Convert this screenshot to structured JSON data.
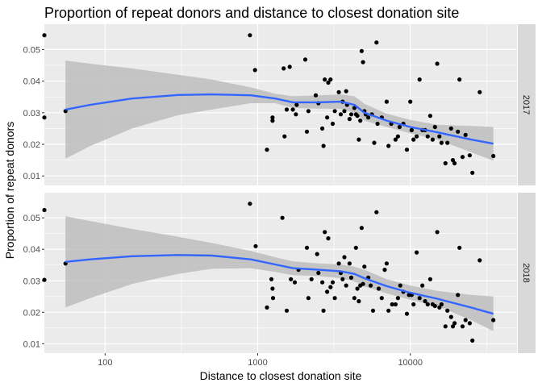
{
  "chart_data": {
    "type": "scatter",
    "title": "Proportion of  repeat donors and distance to closest donation site",
    "xlabel": "Distance to closest donation site",
    "ylabel": "Proportion of repeat donors",
    "x_scale": "log10",
    "xlim": [
      40,
      50000
    ],
    "x_ticks": [
      100,
      1000,
      10000
    ],
    "x_tick_labels": [
      "100",
      "1000",
      "10000"
    ],
    "ylim": [
      0.007,
      0.058
    ],
    "y_ticks": [
      0.01,
      0.02,
      0.03,
      0.04,
      0.05
    ],
    "y_tick_labels": [
      "0.01",
      "0.02",
      "0.03",
      "0.04",
      "0.05"
    ],
    "grid": true,
    "colors": {
      "panel_background": "#ebebeb",
      "grid": "#ffffff",
      "strip_background": "#d9d9d9",
      "points": "#000000",
      "smooth_line": "#3366ff",
      "confidence_band": "#bdbdbd"
    },
    "facets": [
      {
        "label": "2017",
        "points": [
          [
            40,
            0.0545
          ],
          [
            40,
            0.0285
          ],
          [
            55,
            0.0305
          ],
          [
            890,
            0.0545
          ],
          [
            960,
            0.0435
          ],
          [
            1150,
            0.0183
          ],
          [
            1250,
            0.0285
          ],
          [
            1250,
            0.0275
          ],
          [
            1480,
            0.044
          ],
          [
            1500,
            0.0225
          ],
          [
            1550,
            0.031
          ],
          [
            1620,
            0.0445
          ],
          [
            1700,
            0.031
          ],
          [
            1780,
            0.0295
          ],
          [
            1800,
            0.0325
          ],
          [
            2050,
            0.0468
          ],
          [
            2100,
            0.024
          ],
          [
            2150,
            0.0305
          ],
          [
            2400,
            0.0355
          ],
          [
            2500,
            0.033
          ],
          [
            2650,
            0.025
          ],
          [
            2700,
            0.0195
          ],
          [
            2750,
            0.0405
          ],
          [
            2850,
            0.0285
          ],
          [
            2900,
            0.0395
          ],
          [
            3000,
            0.0405
          ],
          [
            3100,
            0.0265
          ],
          [
            3200,
            0.0305
          ],
          [
            3400,
            0.0365
          ],
          [
            3500,
            0.0295
          ],
          [
            3600,
            0.0335
          ],
          [
            3700,
            0.0305
          ],
          [
            3800,
            0.0368
          ],
          [
            3850,
            0.0325
          ],
          [
            4000,
            0.028
          ],
          [
            4100,
            0.0295
          ],
          [
            4300,
            0.0315
          ],
          [
            4400,
            0.0295
          ],
          [
            4500,
            0.029
          ],
          [
            4600,
            0.0215
          ],
          [
            4700,
            0.0275
          ],
          [
            4800,
            0.0495
          ],
          [
            4900,
            0.046
          ],
          [
            5000,
            0.0305
          ],
          [
            5100,
            0.0295
          ],
          [
            5300,
            0.0285
          ],
          [
            5600,
            0.0295
          ],
          [
            5800,
            0.0205
          ],
          [
            6000,
            0.0522
          ],
          [
            6100,
            0.0265
          ],
          [
            6500,
            0.0285
          ],
          [
            7000,
            0.0335
          ],
          [
            7200,
            0.0195
          ],
          [
            7500,
            0.0265
          ],
          [
            8000,
            0.0215
          ],
          [
            8300,
            0.0225
          ],
          [
            8500,
            0.0255
          ],
          [
            9000,
            0.0265
          ],
          [
            9500,
            0.0183
          ],
          [
            10000,
            0.0335
          ],
          [
            10200,
            0.0245
          ],
          [
            10500,
            0.0215
          ],
          [
            11000,
            0.0225
          ],
          [
            11500,
            0.0405
          ],
          [
            12000,
            0.0245
          ],
          [
            12500,
            0.0245
          ],
          [
            13000,
            0.0225
          ],
          [
            13500,
            0.029
          ],
          [
            14000,
            0.0215
          ],
          [
            14500,
            0.0255
          ],
          [
            15000,
            0.0455
          ],
          [
            15500,
            0.0225
          ],
          [
            16000,
            0.0205
          ],
          [
            17000,
            0.014
          ],
          [
            17500,
            0.0205
          ],
          [
            18500,
            0.025
          ],
          [
            19000,
            0.015
          ],
          [
            19500,
            0.014
          ],
          [
            20500,
            0.024
          ],
          [
            21000,
            0.0405
          ],
          [
            22000,
            0.016
          ],
          [
            23000,
            0.023
          ],
          [
            24500,
            0.0165
          ],
          [
            25500,
            0.011
          ],
          [
            28500,
            0.0365
          ],
          [
            35000,
            0.0163
          ]
        ],
        "smooth": [
          [
            55,
            0.031
          ],
          [
            80,
            0.0325
          ],
          [
            150,
            0.0345
          ],
          [
            300,
            0.0356
          ],
          [
            500,
            0.0358
          ],
          [
            900,
            0.0355
          ],
          [
            1300,
            0.0345
          ],
          [
            1700,
            0.0333
          ],
          [
            2500,
            0.0333
          ],
          [
            3500,
            0.0335
          ],
          [
            4300,
            0.0325
          ],
          [
            5000,
            0.03
          ],
          [
            7000,
            0.0275
          ],
          [
            10000,
            0.0255
          ],
          [
            15000,
            0.0238
          ],
          [
            25000,
            0.0215
          ],
          [
            35000,
            0.0202
          ]
        ],
        "band_upper": [
          [
            55,
            0.0465
          ],
          [
            80,
            0.0455
          ],
          [
            150,
            0.044
          ],
          [
            300,
            0.042
          ],
          [
            500,
            0.0405
          ],
          [
            900,
            0.038
          ],
          [
            1300,
            0.036
          ],
          [
            1700,
            0.0352
          ],
          [
            2500,
            0.0355
          ],
          [
            3500,
            0.0358
          ],
          [
            4300,
            0.0352
          ],
          [
            5000,
            0.0328
          ],
          [
            7000,
            0.0297
          ],
          [
            10000,
            0.0277
          ],
          [
            15000,
            0.0262
          ],
          [
            25000,
            0.0258
          ],
          [
            35000,
            0.0255
          ]
        ],
        "band_lower": [
          [
            55,
            0.0155
          ],
          [
            80,
            0.0195
          ],
          [
            150,
            0.025
          ],
          [
            300,
            0.0292
          ],
          [
            500,
            0.031
          ],
          [
            900,
            0.033
          ],
          [
            1300,
            0.033
          ],
          [
            1700,
            0.0315
          ],
          [
            2500,
            0.0313
          ],
          [
            3500,
            0.0312
          ],
          [
            4300,
            0.03
          ],
          [
            5000,
            0.0275
          ],
          [
            7000,
            0.0255
          ],
          [
            10000,
            0.0235
          ],
          [
            15000,
            0.0215
          ],
          [
            25000,
            0.0175
          ],
          [
            35000,
            0.0148
          ]
        ]
      },
      {
        "label": "2018",
        "points": [
          [
            40,
            0.0525
          ],
          [
            40,
            0.0303
          ],
          [
            55,
            0.0355
          ],
          [
            890,
            0.0545
          ],
          [
            970,
            0.041
          ],
          [
            1150,
            0.0215
          ],
          [
            1230,
            0.0305
          ],
          [
            1250,
            0.0275
          ],
          [
            1260,
            0.0245
          ],
          [
            1450,
            0.05
          ],
          [
            1550,
            0.0205
          ],
          [
            1650,
            0.0305
          ],
          [
            1750,
            0.0295
          ],
          [
            1850,
            0.0335
          ],
          [
            2100,
            0.0405
          ],
          [
            2150,
            0.0245
          ],
          [
            2250,
            0.0305
          ],
          [
            2450,
            0.0385
          ],
          [
            2500,
            0.0325
          ],
          [
            2650,
            0.0295
          ],
          [
            2700,
            0.0205
          ],
          [
            2750,
            0.0455
          ],
          [
            2850,
            0.0265
          ],
          [
            2900,
            0.0435
          ],
          [
            3000,
            0.028
          ],
          [
            3100,
            0.0295
          ],
          [
            3200,
            0.0245
          ],
          [
            3400,
            0.0355
          ],
          [
            3500,
            0.0325
          ],
          [
            3600,
            0.0305
          ],
          [
            3700,
            0.0375
          ],
          [
            3800,
            0.0285
          ],
          [
            4000,
            0.0355
          ],
          [
            4100,
            0.031
          ],
          [
            4300,
            0.0245
          ],
          [
            4400,
            0.0405
          ],
          [
            4500,
            0.0275
          ],
          [
            4600,
            0.0235
          ],
          [
            4700,
            0.0285
          ],
          [
            4800,
            0.0468
          ],
          [
            4900,
            0.029
          ],
          [
            5000,
            0.0345
          ],
          [
            5300,
            0.031
          ],
          [
            5500,
            0.0285
          ],
          [
            5700,
            0.0205
          ],
          [
            6000,
            0.0518
          ],
          [
            6200,
            0.0275
          ],
          [
            6500,
            0.0245
          ],
          [
            6800,
            0.0335
          ],
          [
            7000,
            0.0355
          ],
          [
            7200,
            0.0205
          ],
          [
            7600,
            0.0225
          ],
          [
            8000,
            0.0225
          ],
          [
            8300,
            0.0245
          ],
          [
            8600,
            0.0285
          ],
          [
            9000,
            0.0265
          ],
          [
            9500,
            0.0195
          ],
          [
            9800,
            0.0255
          ],
          [
            10200,
            0.0255
          ],
          [
            10500,
            0.0225
          ],
          [
            11000,
            0.039
          ],
          [
            11500,
            0.0245
          ],
          [
            12000,
            0.0285
          ],
          [
            12500,
            0.0235
          ],
          [
            13000,
            0.0225
          ],
          [
            13500,
            0.0305
          ],
          [
            14000,
            0.0225
          ],
          [
            14500,
            0.022
          ],
          [
            15000,
            0.0455
          ],
          [
            15500,
            0.0215
          ],
          [
            16000,
            0.0225
          ],
          [
            17000,
            0.0155
          ],
          [
            17500,
            0.0205
          ],
          [
            18500,
            0.0185
          ],
          [
            19000,
            0.0155
          ],
          [
            19500,
            0.0165
          ],
          [
            20500,
            0.0255
          ],
          [
            21000,
            0.0405
          ],
          [
            22000,
            0.0155
          ],
          [
            23000,
            0.0175
          ],
          [
            24500,
            0.0165
          ],
          [
            25500,
            0.011
          ],
          [
            28500,
            0.0365
          ],
          [
            35000,
            0.0175
          ]
        ],
        "smooth": [
          [
            55,
            0.036
          ],
          [
            80,
            0.0368
          ],
          [
            150,
            0.0378
          ],
          [
            300,
            0.0382
          ],
          [
            500,
            0.038
          ],
          [
            900,
            0.0368
          ],
          [
            1300,
            0.0352
          ],
          [
            1700,
            0.034
          ],
          [
            2500,
            0.0335
          ],
          [
            3500,
            0.033
          ],
          [
            4300,
            0.0322
          ],
          [
            5000,
            0.0308
          ],
          [
            7000,
            0.0283
          ],
          [
            10000,
            0.0262
          ],
          [
            15000,
            0.0243
          ],
          [
            25000,
            0.0215
          ],
          [
            35000,
            0.0195
          ]
        ],
        "band_upper": [
          [
            55,
            0.0505
          ],
          [
            80,
            0.049
          ],
          [
            150,
            0.0465
          ],
          [
            300,
            0.044
          ],
          [
            500,
            0.042
          ],
          [
            900,
            0.0395
          ],
          [
            1300,
            0.0375
          ],
          [
            1700,
            0.0362
          ],
          [
            2500,
            0.0355
          ],
          [
            3500,
            0.0352
          ],
          [
            4300,
            0.0345
          ],
          [
            5000,
            0.0335
          ],
          [
            7000,
            0.0305
          ],
          [
            10000,
            0.0285
          ],
          [
            15000,
            0.0268
          ],
          [
            25000,
            0.0255
          ],
          [
            35000,
            0.025
          ]
        ],
        "band_lower": [
          [
            55,
            0.0215
          ],
          [
            80,
            0.0245
          ],
          [
            150,
            0.029
          ],
          [
            300,
            0.0322
          ],
          [
            500,
            0.0338
          ],
          [
            900,
            0.034
          ],
          [
            1300,
            0.0328
          ],
          [
            1700,
            0.0318
          ],
          [
            2500,
            0.0315
          ],
          [
            3500,
            0.0308
          ],
          [
            4300,
            0.0298
          ],
          [
            5000,
            0.0282
          ],
          [
            7000,
            0.026
          ],
          [
            10000,
            0.024
          ],
          [
            15000,
            0.022
          ],
          [
            25000,
            0.0175
          ],
          [
            35000,
            0.014
          ]
        ]
      }
    ]
  }
}
